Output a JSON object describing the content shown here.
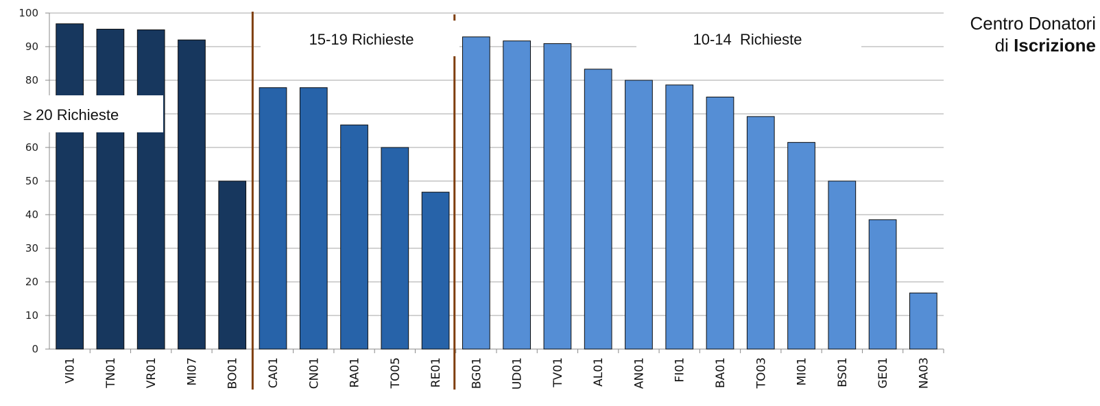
{
  "title": {
    "line1": "Centro Donatori",
    "line2_prefix": "di ",
    "line2_bold": "Iscrizione"
  },
  "chart_data": {
    "type": "bar",
    "ylim": [
      0,
      100
    ],
    "yticks": [
      0,
      10,
      20,
      30,
      40,
      50,
      60,
      70,
      80,
      90,
      100
    ],
    "grid": true,
    "categories": [
      "VI01",
      "TN01",
      "VR01",
      "MI07",
      "BO01",
      "CA01",
      "CN01",
      "RA01",
      "TO05",
      "RE01",
      "BG01",
      "UD01",
      "TV01",
      "AL01",
      "AN01",
      "FI01",
      "BA01",
      "TO03",
      "MI01",
      "BS01",
      "GE01",
      "NA03"
    ],
    "values": [
      96.8,
      95.2,
      95.0,
      92.0,
      50.0,
      77.8,
      77.8,
      66.7,
      60.0,
      46.7,
      92.9,
      91.7,
      90.9,
      83.3,
      80.0,
      78.6,
      75.0,
      69.2,
      61.5,
      50.0,
      38.5,
      16.7
    ],
    "groups": [
      {
        "label": "≥ 20 Richieste",
        "start": 0,
        "end": 4,
        "color": "#17375e"
      },
      {
        "label": "15-19 Richieste",
        "start": 5,
        "end": 9,
        "color": "#2763a9"
      },
      {
        "label": "10-14  Richieste",
        "start": 10,
        "end": 21,
        "color": "#558ed5"
      }
    ],
    "divider_color": "#7f3f0f"
  }
}
